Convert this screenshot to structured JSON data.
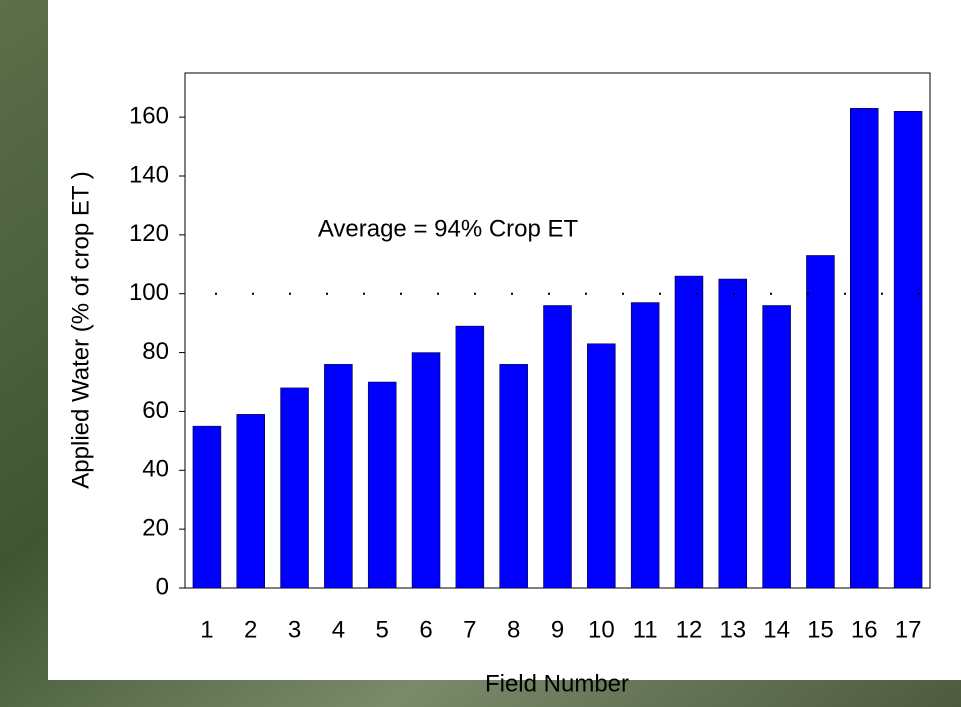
{
  "chart_data": {
    "type": "bar",
    "y_label": "Applied Water (% of crop ET )",
    "x_label": "Field Number",
    "annotation": "Average = 94% Crop ET",
    "categories": [
      "1",
      "2",
      "3",
      "4",
      "5",
      "6",
      "7",
      "8",
      "9",
      "10",
      "11",
      "12",
      "13",
      "14",
      "15",
      "16",
      "17"
    ],
    "values": [
      55,
      59,
      68,
      76,
      70,
      80,
      89,
      76,
      96,
      83,
      97,
      106,
      105,
      96,
      113,
      163,
      162
    ],
    "color": "#0000ff",
    "reference_line": 100,
    "ylim": [
      0,
      175
    ],
    "yticks": [
      0,
      20,
      40,
      60,
      80,
      100,
      120,
      140,
      160
    ]
  }
}
